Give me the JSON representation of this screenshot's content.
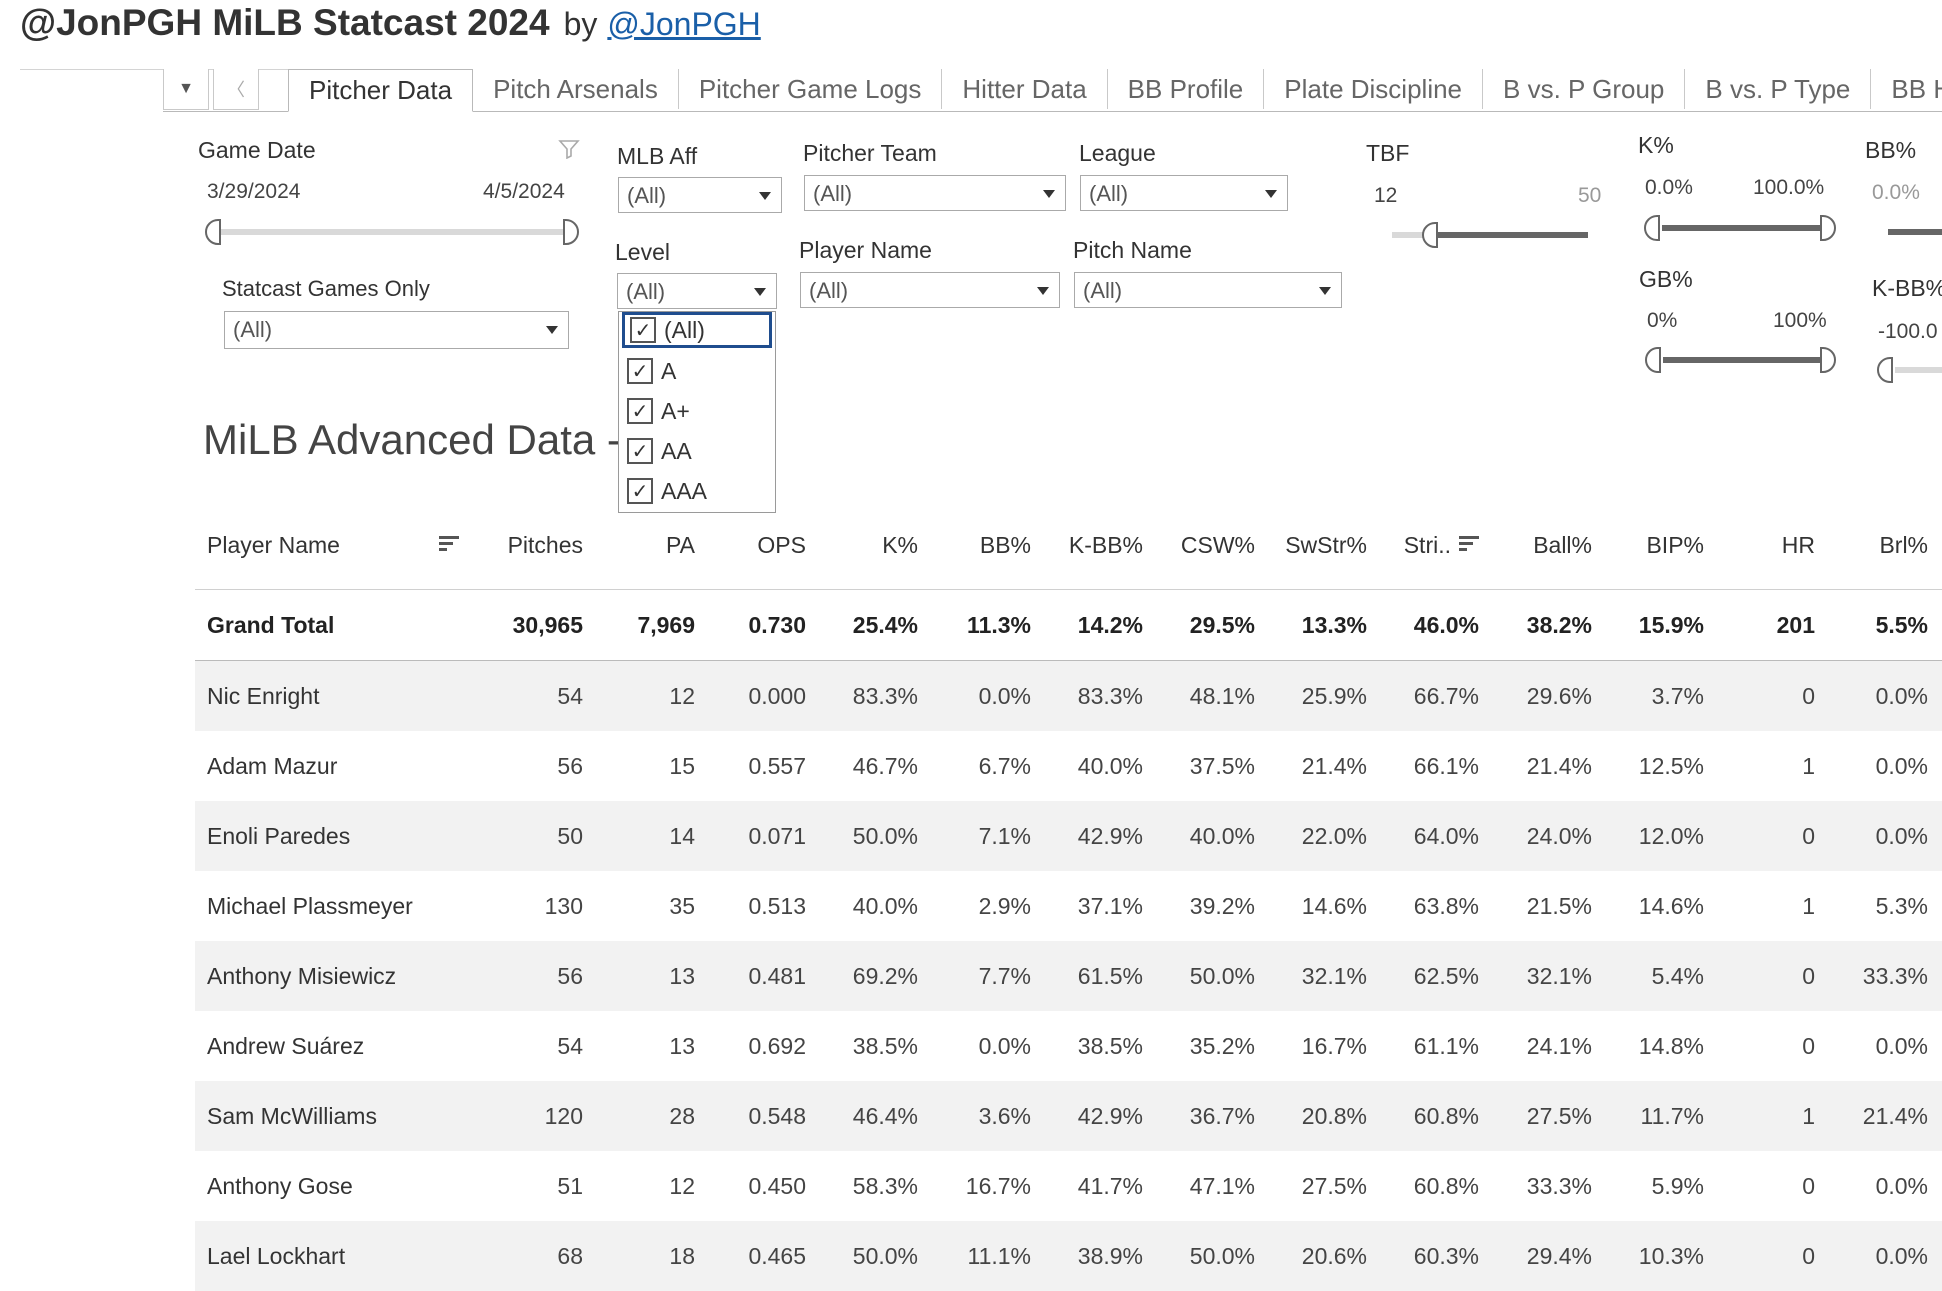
{
  "header": {
    "title": "@JonPGH MiLB Statcast 2024",
    "by": "by",
    "author": "@JonPGH"
  },
  "tabs": [
    "Pitcher Data",
    "Pitch Arsenals",
    "Pitcher Game Logs",
    "Hitter Data",
    "BB Profile",
    "Plate Discipline",
    "B vs. P Group",
    "B vs. P Type",
    "BB Hist"
  ],
  "tab_controls": {
    "menu": "▼",
    "prev": "〈"
  },
  "filters": {
    "game_date": {
      "label": "Game Date",
      "start": "3/29/2024",
      "end": "4/5/2024"
    },
    "statcast_games_only": {
      "label": "Statcast Games Only",
      "value": "(All)"
    },
    "mlb_aff": {
      "label": "MLB Aff",
      "value": "(All)"
    },
    "level": {
      "label": "Level",
      "value": "(All)",
      "options": [
        "(All)",
        "A",
        "A+",
        "AA",
        "AAA"
      ]
    },
    "pitcher_team": {
      "label": "Pitcher Team",
      "value": "(All)"
    },
    "player_name": {
      "label": "Player Name",
      "value": "(All)"
    },
    "league": {
      "label": "League",
      "value": "(All)"
    },
    "pitch_name": {
      "label": "Pitch Name",
      "value": "(All)"
    },
    "tbf": {
      "label": "TBF",
      "min": "12",
      "max": "50"
    },
    "k_pct": {
      "label": "K%",
      "min": "0.0%",
      "max": "100.0%"
    },
    "gb_pct": {
      "label": "GB%",
      "min": "0%",
      "max": "100%"
    },
    "bb_pct": {
      "label": "BB%",
      "min": "0.0%"
    },
    "k_bb_pct": {
      "label": "K-BB%",
      "min": "-100.0"
    }
  },
  "sheet_title": "MiLB Advanced Data -",
  "table": {
    "columns": [
      "Player Name",
      "Pitches",
      "PA",
      "OPS",
      "K%",
      "BB%",
      "K-BB%",
      "CSW%",
      "SwStr%",
      "Stri..",
      "Ball%",
      "BIP%",
      "HR",
      "Brl%"
    ],
    "grand_total": [
      "Grand Total",
      "30,965",
      "7,969",
      "0.730",
      "25.4%",
      "11.3%",
      "14.2%",
      "29.5%",
      "13.3%",
      "46.0%",
      "38.2%",
      "15.9%",
      "201",
      "5.5%"
    ],
    "rows": [
      [
        "Nic Enright",
        "54",
        "12",
        "0.000",
        "83.3%",
        "0.0%",
        "83.3%",
        "48.1%",
        "25.9%",
        "66.7%",
        "29.6%",
        "3.7%",
        "0",
        "0.0%"
      ],
      [
        "Adam Mazur",
        "56",
        "15",
        "0.557",
        "46.7%",
        "6.7%",
        "40.0%",
        "37.5%",
        "21.4%",
        "66.1%",
        "21.4%",
        "12.5%",
        "1",
        "0.0%"
      ],
      [
        "Enoli Paredes",
        "50",
        "14",
        "0.071",
        "50.0%",
        "7.1%",
        "42.9%",
        "40.0%",
        "22.0%",
        "64.0%",
        "24.0%",
        "12.0%",
        "0",
        "0.0%"
      ],
      [
        "Michael Plassmeyer",
        "130",
        "35",
        "0.513",
        "40.0%",
        "2.9%",
        "37.1%",
        "39.2%",
        "14.6%",
        "63.8%",
        "21.5%",
        "14.6%",
        "1",
        "5.3%"
      ],
      [
        "Anthony Misiewicz",
        "56",
        "13",
        "0.481",
        "69.2%",
        "7.7%",
        "61.5%",
        "50.0%",
        "32.1%",
        "62.5%",
        "32.1%",
        "5.4%",
        "0",
        "33.3%"
      ],
      [
        "Andrew Suárez",
        "54",
        "13",
        "0.692",
        "38.5%",
        "0.0%",
        "38.5%",
        "35.2%",
        "16.7%",
        "61.1%",
        "24.1%",
        "14.8%",
        "0",
        "0.0%"
      ],
      [
        "Sam McWilliams",
        "120",
        "28",
        "0.548",
        "46.4%",
        "3.6%",
        "42.9%",
        "36.7%",
        "20.8%",
        "60.8%",
        "27.5%",
        "11.7%",
        "1",
        "21.4%"
      ],
      [
        "Anthony Gose",
        "51",
        "12",
        "0.450",
        "58.3%",
        "16.7%",
        "41.7%",
        "47.1%",
        "27.5%",
        "60.8%",
        "33.3%",
        "5.9%",
        "0",
        "0.0%"
      ],
      [
        "Lael Lockhart",
        "68",
        "18",
        "0.465",
        "50.0%",
        "11.1%",
        "38.9%",
        "50.0%",
        "20.6%",
        "60.3%",
        "29.4%",
        "10.3%",
        "0",
        "0.0%"
      ]
    ]
  }
}
